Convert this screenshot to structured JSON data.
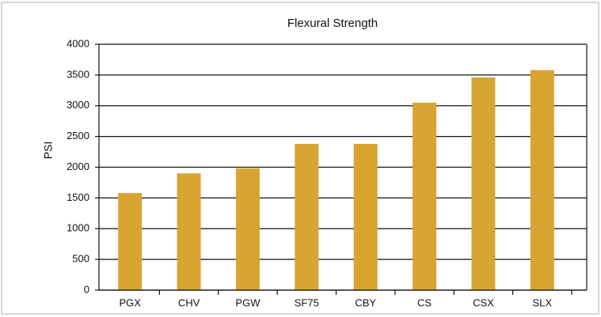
{
  "chart_data": {
    "type": "bar",
    "title": "Flexural Strength",
    "y_label": "PSI",
    "categories": [
      "PGX",
      "CHV",
      "PGW",
      "SF75",
      "CBY",
      "CS",
      "CSX",
      "SLX"
    ],
    "values": [
      1580,
      1900,
      1980,
      2380,
      2380,
      3050,
      3460,
      3580
    ],
    "color": "#d8a532",
    "ylim": [
      0,
      4000
    ],
    "yticks": [
      0,
      500,
      1000,
      1500,
      2000,
      2500,
      3000,
      3500,
      4000
    ],
    "grid": true
  }
}
